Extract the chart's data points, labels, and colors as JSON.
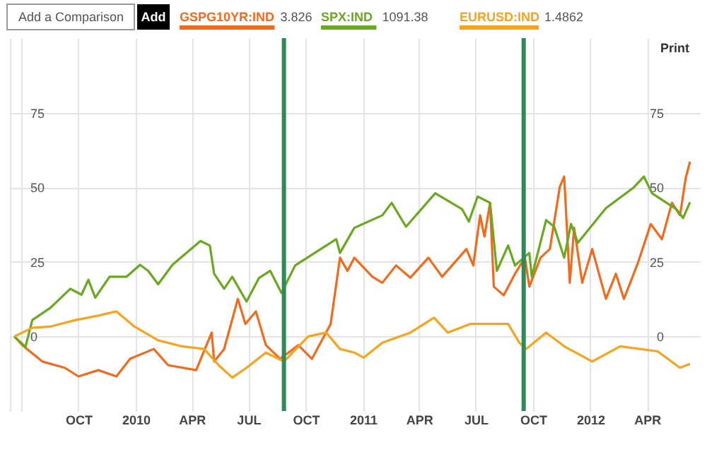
{
  "chart_data": {
    "type": "line",
    "series": [
      {
        "name": "GSPG10YR:IND",
        "color": "#f26a1b",
        "x": [
          "2009-06-20",
          "2009-07-03",
          "2009-08-04",
          "2009-09-09",
          "2009-10-01",
          "2009-11-02",
          "2009-12-01",
          "2009-12-23",
          "2010-01-30",
          "2010-02-22",
          "2010-04-08",
          "2010-05-03",
          "2010-05-07",
          "2010-05-23",
          "2010-06-14",
          "2010-06-26",
          "2010-07-13",
          "2010-07-29",
          "2010-08-21",
          "2010-09-19",
          "2010-10-11",
          "2010-11-10",
          "2010-11-25",
          "2010-12-07",
          "2010-12-18",
          "2011-01-16",
          "2011-02-01",
          "2011-02-23",
          "2011-03-18",
          "2011-04-16",
          "2011-05-08",
          "2011-06-16",
          "2011-06-27",
          "2011-07-08",
          "2011-07-15",
          "2011-07-24",
          "2011-07-30",
          "2011-08-15",
          "2011-09-02",
          "2011-09-18",
          "2011-09-25",
          "2011-10-13",
          "2011-10-28",
          "2011-11-13",
          "2011-11-20",
          "2011-11-29",
          "2011-12-06",
          "2011-12-19",
          "2012-01-04",
          "2012-01-26",
          "2012-02-11",
          "2012-02-24",
          "2012-03-18",
          "2012-04-07",
          "2012-04-25",
          "2012-05-11",
          "2012-05-24",
          "2012-06-02",
          "2012-06-09"
        ],
        "values": [
          0,
          -2.9,
          -8.4,
          -10.5,
          -13.4,
          -11.3,
          -13.4,
          -7.5,
          -4.2,
          -9.6,
          -11.3,
          1.3,
          -8.4,
          -4.2,
          12.6,
          4.2,
          8.4,
          -2.9,
          -7.5,
          -2.9,
          -7.5,
          4.2,
          26.4,
          22,
          26.4,
          20,
          18,
          23.8,
          19.7,
          26.4,
          20,
          29.3,
          23.8,
          40.6,
          33.5,
          44.8,
          16.7,
          13.8,
          21,
          26.4,
          16.7,
          26.4,
          29.3,
          50.2,
          53.6,
          18,
          36.4,
          18,
          29.3,
          12.6,
          21,
          12.6,
          25,
          37.7,
          32.6,
          44.8,
          40.6,
          53,
          58.6
        ]
      },
      {
        "name": "SPX:IND",
        "color": "#6aa820",
        "x": [
          "2009-06-20",
          "2009-07-08",
          "2009-07-19",
          "2009-08-17",
          "2009-09-18",
          "2009-10-06",
          "2009-10-17",
          "2009-10-28",
          "2009-11-20",
          "2009-12-17",
          "2010-01-08",
          "2010-01-21",
          "2010-02-06",
          "2010-03-01",
          "2010-04-15",
          "2010-04-30",
          "2010-05-07",
          "2010-05-23",
          "2010-06-05",
          "2010-06-28",
          "2010-07-18",
          "2010-08-05",
          "2010-08-23",
          "2010-09-14",
          "2010-11-03",
          "2010-11-19",
          "2010-11-25",
          "2010-12-18",
          "2011-02-01",
          "2011-02-16",
          "2011-03-11",
          "2011-04-27",
          "2011-06-09",
          "2011-06-20",
          "2011-07-04",
          "2011-07-24",
          "2011-08-04",
          "2011-08-22",
          "2011-09-02",
          "2011-09-25",
          "2011-09-29",
          "2011-10-22",
          "2011-11-04",
          "2011-11-20",
          "2011-12-01",
          "2011-12-12",
          "2012-01-26",
          "2012-03-11",
          "2012-03-27",
          "2012-04-09",
          "2012-05-18",
          "2012-05-29",
          "2012-06-09"
        ],
        "values": [
          0,
          -3.5,
          5.5,
          9.6,
          16,
          14,
          19,
          13,
          20,
          20,
          24,
          22,
          17.5,
          24,
          32,
          30.5,
          21,
          16,
          20,
          11.7,
          19.6,
          22,
          14.6,
          23.8,
          30.5,
          32.6,
          28,
          36.4,
          40.6,
          44.8,
          36.8,
          48,
          42.7,
          38.5,
          46.9,
          44.8,
          22,
          30.5,
          23.8,
          28,
          20,
          39,
          36.8,
          26.4,
          37.7,
          31.4,
          43,
          50,
          53.6,
          48,
          42.7,
          39.7,
          45
        ]
      },
      {
        "name": "EURUSD:IND",
        "color": "#f7a31c",
        "x": [
          "2009-06-20",
          "2009-07-19",
          "2009-08-17",
          "2009-09-24",
          "2009-11-02",
          "2009-12-01",
          "2009-12-30",
          "2010-02-06",
          "2010-03-16",
          "2010-04-21",
          "2010-05-14",
          "2010-06-05",
          "2010-06-28",
          "2010-07-29",
          "2010-08-27",
          "2010-10-05",
          "2010-11-03",
          "2010-11-25",
          "2010-12-18",
          "2011-01-02",
          "2011-02-01",
          "2011-03-18",
          "2011-04-25",
          "2011-05-17",
          "2011-06-22",
          "2011-08-22",
          "2011-09-09",
          "2011-09-20",
          "2011-10-22",
          "2011-11-20",
          "2012-01-04",
          "2012-02-18",
          "2012-04-18",
          "2012-05-24",
          "2012-06-09"
        ],
        "values": [
          0,
          2.9,
          3.3,
          5.4,
          7,
          8.4,
          3.3,
          -1.3,
          -3.3,
          -4.2,
          -9.6,
          -13.8,
          -10.5,
          -5.4,
          -8.4,
          0,
          1.3,
          -4.2,
          -5.4,
          -7.1,
          -2.1,
          1.3,
          6.3,
          1.3,
          4.2,
          4.2,
          -2.1,
          -4.2,
          1.3,
          -3.3,
          -8.4,
          -3.3,
          -5,
          -10.5,
          -9.2
        ]
      }
    ],
    "xlim": [
      "2009-06-13",
      "2012-06-25"
    ],
    "xticks": [
      {
        "value": "2009-07-01",
        "label": null
      },
      {
        "value": "2009-10-01",
        "label": "OCT"
      },
      {
        "value": "2010-01-01",
        "label": "2010"
      },
      {
        "value": "2010-04-01",
        "label": "APR"
      },
      {
        "value": "2010-07-01",
        "label": "JUL"
      },
      {
        "value": "2010-10-01",
        "label": "OCT"
      },
      {
        "value": "2011-01-01",
        "label": "2011"
      },
      {
        "value": "2011-04-01",
        "label": "APR"
      },
      {
        "value": "2011-07-01",
        "label": "JUL"
      },
      {
        "value": "2011-10-01",
        "label": "OCT"
      },
      {
        "value": "2012-01-01",
        "label": "2012"
      },
      {
        "value": "2012-04-01",
        "label": "APR"
      }
    ],
    "ylim": [
      -25,
      100
    ],
    "yticks": [
      0,
      25,
      50,
      75
    ],
    "y2lim": [
      -25,
      100
    ],
    "y2ticks": [
      0,
      25,
      50,
      75
    ],
    "ref_lines": [
      {
        "axis": "x",
        "value": "2010-08-27",
        "color": "#2e8b57"
      },
      {
        "axis": "x",
        "value": "2011-09-16",
        "color": "#2e8b57"
      }
    ],
    "annotations": [
      "Add a Comparison",
      "Add",
      "3.826",
      "1091.38",
      "1.4862",
      "Print"
    ],
    "grid": true,
    "legend": "top left",
    "line_style": "solid",
    "marker": "none"
  }
}
